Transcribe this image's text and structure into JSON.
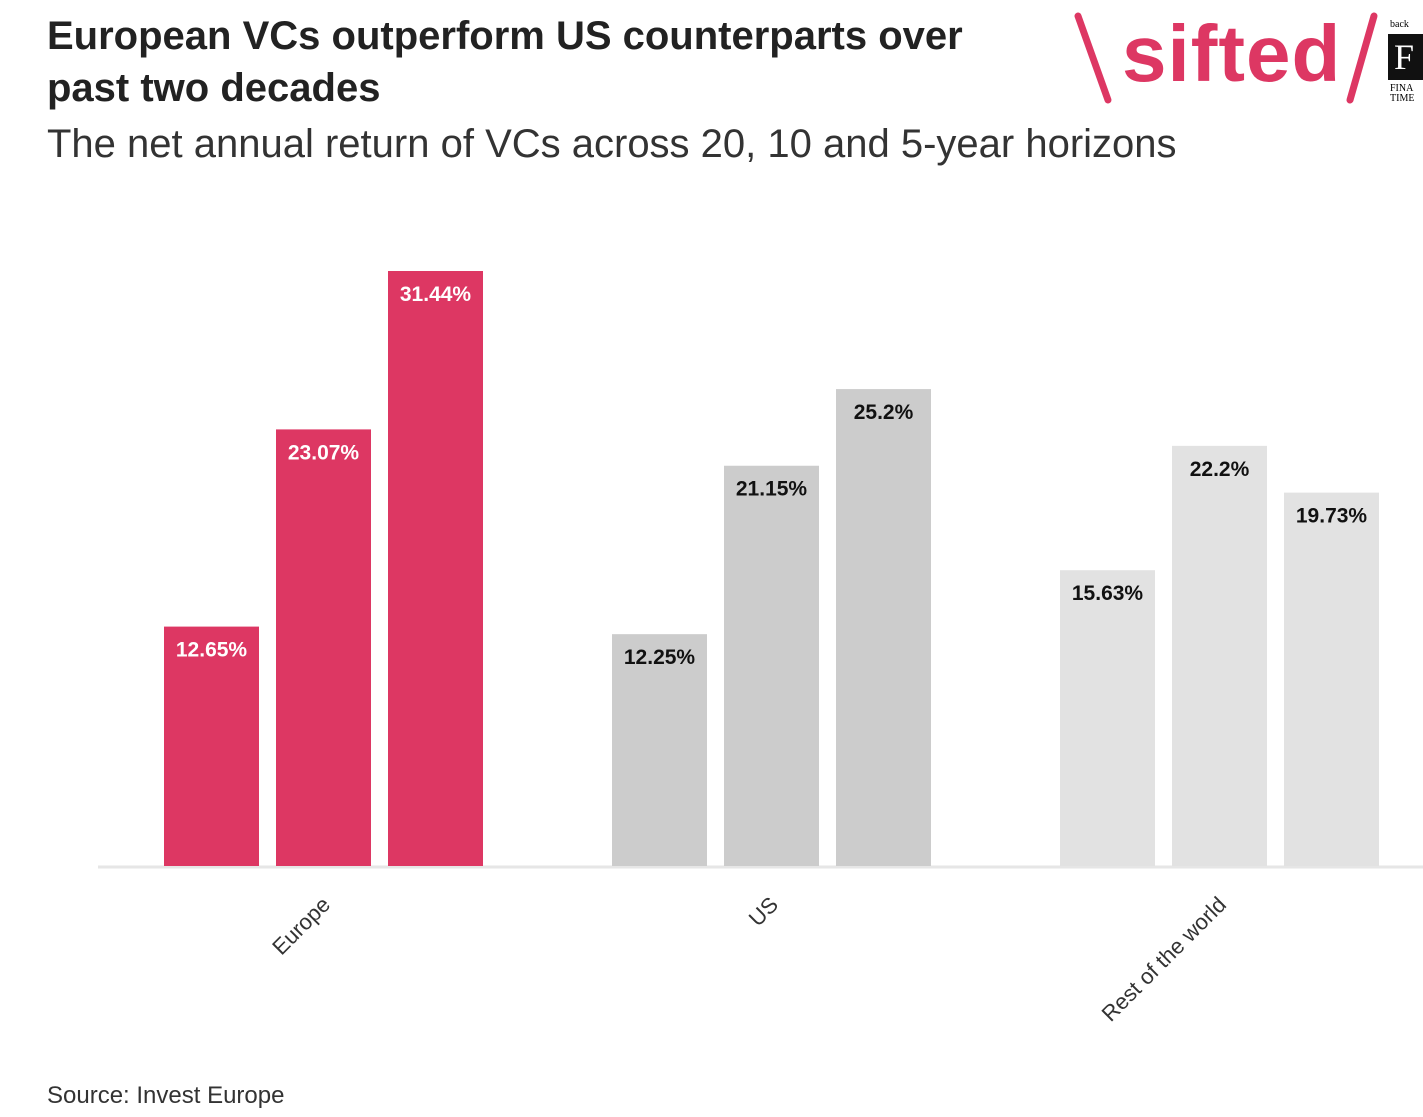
{
  "title": "European VCs outperform US counterparts over past two decades",
  "subtitle": "The net annual return of VCs across 20, 10 and 5-year horizons",
  "logo": {
    "brand": "sifted",
    "badge_top": "back",
    "badge_letter": "F",
    "badge_line1": "FINA",
    "badge_line2": "TIME"
  },
  "source": "Source: Invest Europe",
  "chart_data": {
    "type": "bar",
    "categories": [
      "Europe",
      "US",
      "Rest of the world"
    ],
    "series": [
      {
        "values": [
          12.65,
          12.25,
          15.63
        ]
      },
      {
        "values": [
          23.07,
          21.15,
          22.2
        ]
      },
      {
        "values": [
          31.44,
          25.2,
          19.73
        ]
      }
    ],
    "data_labels": [
      [
        "12.65%",
        "23.07%",
        "31.44%"
      ],
      [
        "12.25%",
        "21.15%",
        "25.2%"
      ],
      [
        "15.63%",
        "22.2%",
        "19.73%"
      ]
    ],
    "group_colors": [
      "#dd3763",
      "#cccccc",
      "#e2e2e2"
    ],
    "label_colors": [
      "#ffffff",
      "#111111",
      "#111111"
    ],
    "xlabel": "",
    "ylabel": "",
    "ylim": [
      0,
      31.44
    ],
    "grid": false,
    "legend": "none"
  }
}
